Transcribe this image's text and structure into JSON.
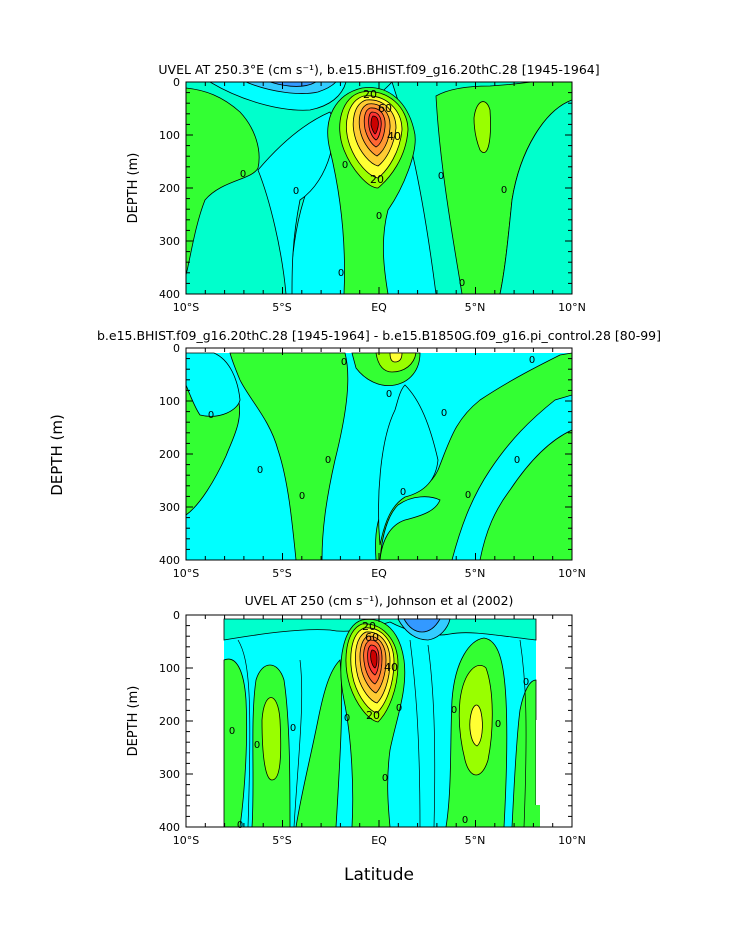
{
  "figure": {
    "xlabel": "Latitude",
    "shared_ylabel": "DEPTH (m)",
    "x_ticks": [
      "10°S",
      "5°S",
      "EQ",
      "5°N",
      "10°N"
    ]
  },
  "colors": {
    "background": "#ffffff",
    "cyan_light": "#00ffcc",
    "cyan": "#00ffff",
    "sky": "#33ccff",
    "blue": "#3399ff",
    "green": "#33ff33",
    "lime": "#99ff00",
    "yellow": "#ffff33",
    "orange": "#ffcc33",
    "dark_orange": "#ff9933",
    "red": "#ff3333",
    "contour": "#000000"
  },
  "chart_data": [
    {
      "type": "heatmap",
      "title": "UVEL AT 250.3°E (cm s⁻¹), b.e15.BHIST.f09_g16.20thC.28 [1945-1964]",
      "ylabel": "DEPTH (m)",
      "xlim": [
        -10,
        10
      ],
      "ylim": [
        0,
        400
      ],
      "y_ticks": [
        "0",
        "100",
        "200",
        "300",
        "400"
      ],
      "contour_labels": [
        "20",
        "60",
        "40",
        "20",
        "0",
        "0",
        "0",
        "0",
        "0",
        "0",
        "0",
        "0"
      ],
      "core": {
        "lat": 0,
        "depth": 85,
        "value": "max"
      }
    },
    {
      "type": "heatmap",
      "title": "b.e15.BHIST.f09_g16.20thC.28 [1945-1964] - b.e15.B1850G.f09_g16.pi_control.28 [80-99]",
      "ylabel": "",
      "xlim": [
        -10,
        10
      ],
      "ylim": [
        0,
        400
      ],
      "y_ticks": [
        "0",
        "100",
        "200",
        "300",
        "400"
      ],
      "contour_labels": [
        "0",
        "0",
        "0",
        "0",
        "0",
        "0",
        "0",
        "0",
        "0",
        "0",
        "0"
      ]
    },
    {
      "type": "heatmap",
      "title": "UVEL AT 250 (cm s⁻¹), Johnson et al (2002)",
      "ylabel": "DEPTH (m)",
      "xlim": [
        -10,
        10
      ],
      "ylim": [
        0,
        400
      ],
      "y_ticks": [
        "0",
        "100",
        "200",
        "300",
        "400"
      ],
      "contour_labels": [
        "20",
        "60",
        "40",
        "20",
        "0",
        "0",
        "0",
        "0",
        "0",
        "0",
        "0",
        "0",
        "0",
        "0",
        "0"
      ],
      "core": {
        "lat": -0.3,
        "depth": 75,
        "value": "max"
      }
    }
  ]
}
